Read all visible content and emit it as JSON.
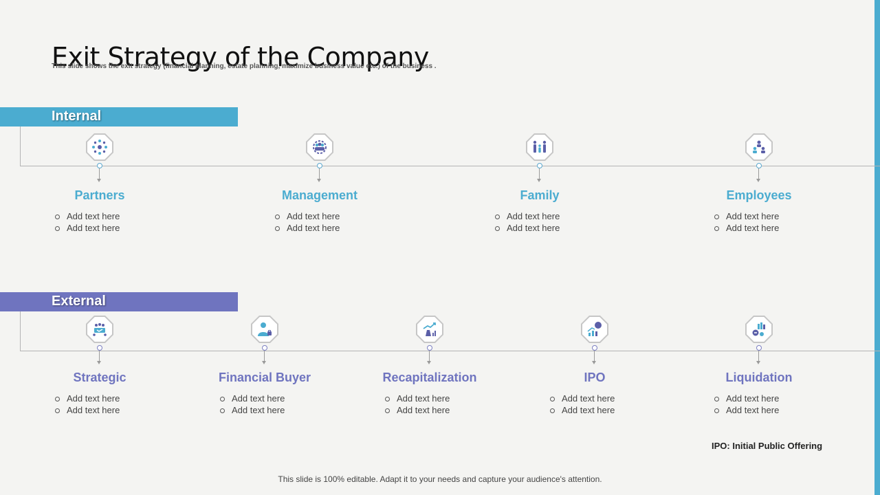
{
  "title": "Exit Strategy of the Company",
  "subtitle": "This slide shows the exit strategy (financial planning,  estate planning,  maximize business value etc.) of the business .",
  "internal": {
    "label": "Internal",
    "items": [
      {
        "label": "Partners",
        "icon": "partners-network-icon",
        "bullets": [
          "Add text here",
          "Add text here"
        ]
      },
      {
        "label": "Management",
        "icon": "management-team-icon",
        "bullets": [
          "Add text here",
          "Add text here"
        ]
      },
      {
        "label": "Family",
        "icon": "family-icon",
        "bullets": [
          "Add text here",
          "Add text here"
        ]
      },
      {
        "label": "Employees",
        "icon": "employees-hierarchy-icon",
        "bullets": [
          "Add text here",
          "Add text here"
        ]
      }
    ]
  },
  "external": {
    "label": "External",
    "items": [
      {
        "label": "Strategic",
        "icon": "strategic-meeting-icon",
        "bullets": [
          "Add text here",
          "Add text here"
        ]
      },
      {
        "label": "Financial  Buyer",
        "icon": "financial-buyer-icon",
        "bullets": [
          "Add text here",
          "Add text here"
        ]
      },
      {
        "label": "Recapitalization",
        "icon": "recapitalization-icon",
        "bullets": [
          "Add text here",
          "Add text here"
        ]
      },
      {
        "label": "IPO",
        "icon": "ipo-growth-icon",
        "bullets": [
          "Add text here",
          "Add text here"
        ]
      },
      {
        "label": "Liquidation",
        "icon": "liquidation-icon",
        "bullets": [
          "Add text here",
          "Add text here"
        ]
      }
    ]
  },
  "note": "IPO: Initial Public Offering",
  "footer": "This slide is 100% editable. Adapt it to your needs and capture your audience's attention.",
  "colors": {
    "internal": "#4bacd0",
    "external": "#6f74bf",
    "icon_dark": "#5b5fa8",
    "icon_light": "#4bacd0"
  }
}
